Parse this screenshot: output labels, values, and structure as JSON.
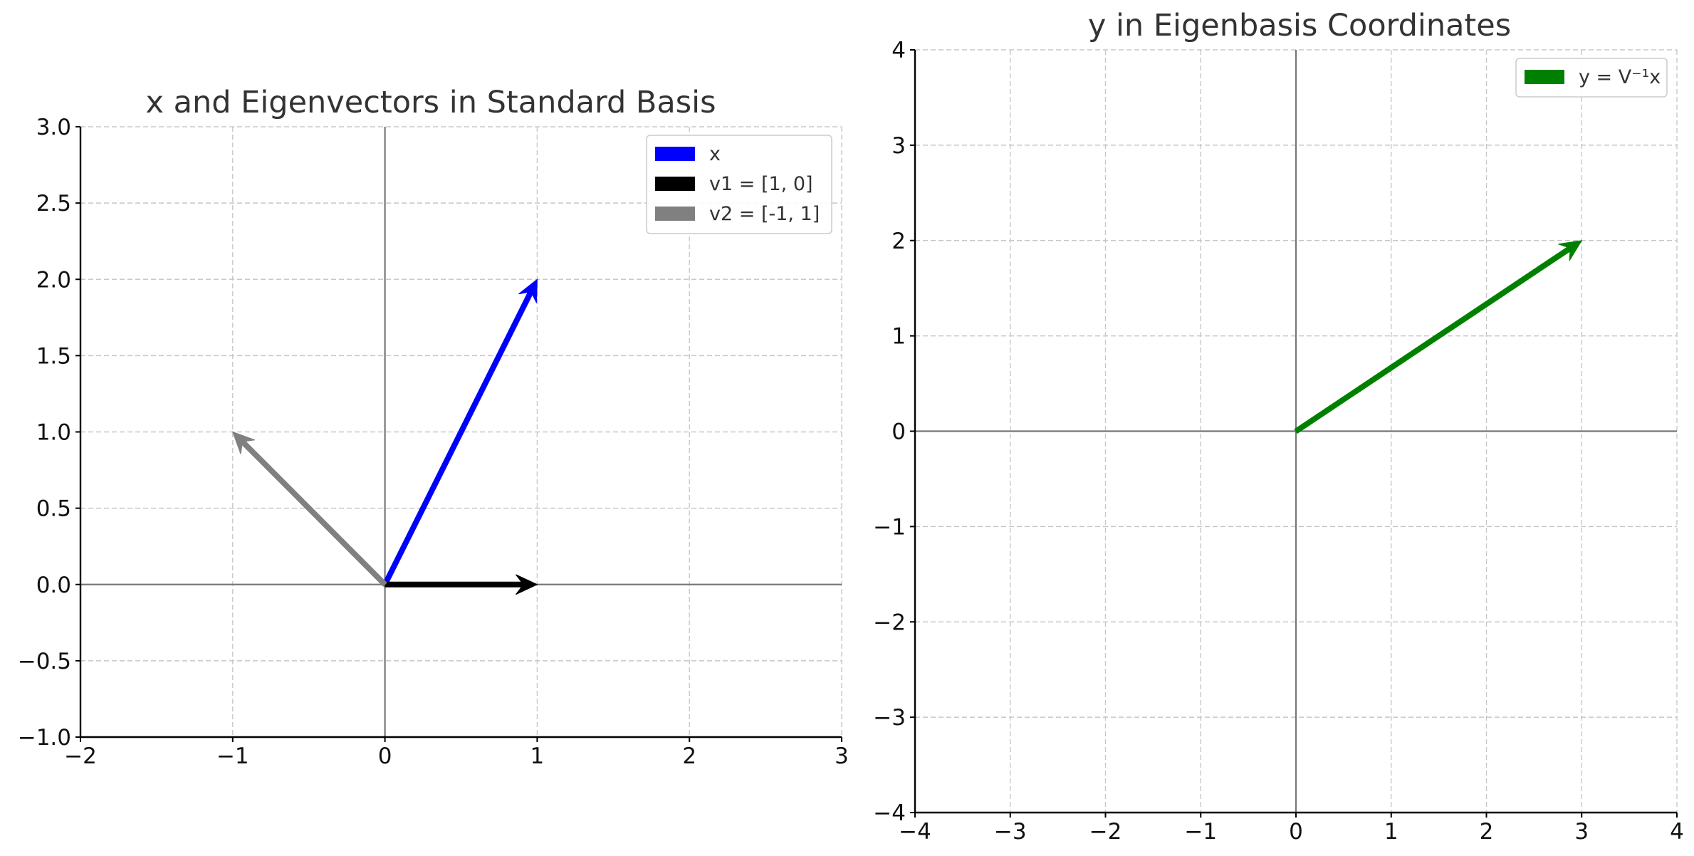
{
  "chart_data": [
    {
      "type": "vector",
      "title": "x and Eigenvectors in Standard Basis",
      "xlabel": "",
      "ylabel": "",
      "xlim": [
        -2,
        3
      ],
      "ylim": [
        -1,
        3
      ],
      "xticks": [
        -2,
        -1,
        0,
        1,
        2,
        3
      ],
      "yticks": [
        -1.0,
        -0.5,
        0.0,
        0.5,
        1.0,
        1.5,
        2.0,
        2.5,
        3.0
      ],
      "xtick_labels": [
        "−2",
        "−1",
        "0",
        "1",
        "2",
        "3"
      ],
      "ytick_labels": [
        "−1.0",
        "−0.5",
        "0.0",
        "0.5",
        "1.0",
        "1.5",
        "2.0",
        "2.5",
        "3.0"
      ],
      "grid": true,
      "legend_position": "top-right",
      "vectors": [
        {
          "name": "x",
          "origin": [
            0,
            0
          ],
          "vector": [
            1,
            2
          ],
          "color": "#0000ff"
        },
        {
          "name": "v1 = [1, 0]",
          "origin": [
            0,
            0
          ],
          "vector": [
            1,
            0
          ],
          "color": "#000000"
        },
        {
          "name": "v2 = [-1, 1]",
          "origin": [
            0,
            0
          ],
          "vector": [
            -1,
            1
          ],
          "color": "#808080"
        }
      ]
    },
    {
      "type": "vector",
      "title": "y in Eigenbasis Coordinates",
      "xlabel": "",
      "ylabel": "",
      "xlim": [
        -4,
        4
      ],
      "ylim": [
        -4,
        4
      ],
      "xticks": [
        -4,
        -3,
        -2,
        -1,
        0,
        1,
        2,
        3,
        4
      ],
      "yticks": [
        -4,
        -3,
        -2,
        -1,
        0,
        1,
        2,
        3,
        4
      ],
      "xtick_labels": [
        "−4",
        "−3",
        "−2",
        "−1",
        "0",
        "1",
        "2",
        "3",
        "4"
      ],
      "ytick_labels": [
        "−4",
        "−3",
        "−2",
        "−1",
        "0",
        "1",
        "2",
        "3",
        "4"
      ],
      "grid": true,
      "legend_position": "top-right",
      "vectors": [
        {
          "name": "y = V⁻¹x",
          "origin": [
            0,
            0
          ],
          "vector": [
            3,
            2
          ],
          "color": "#008000"
        }
      ]
    }
  ]
}
